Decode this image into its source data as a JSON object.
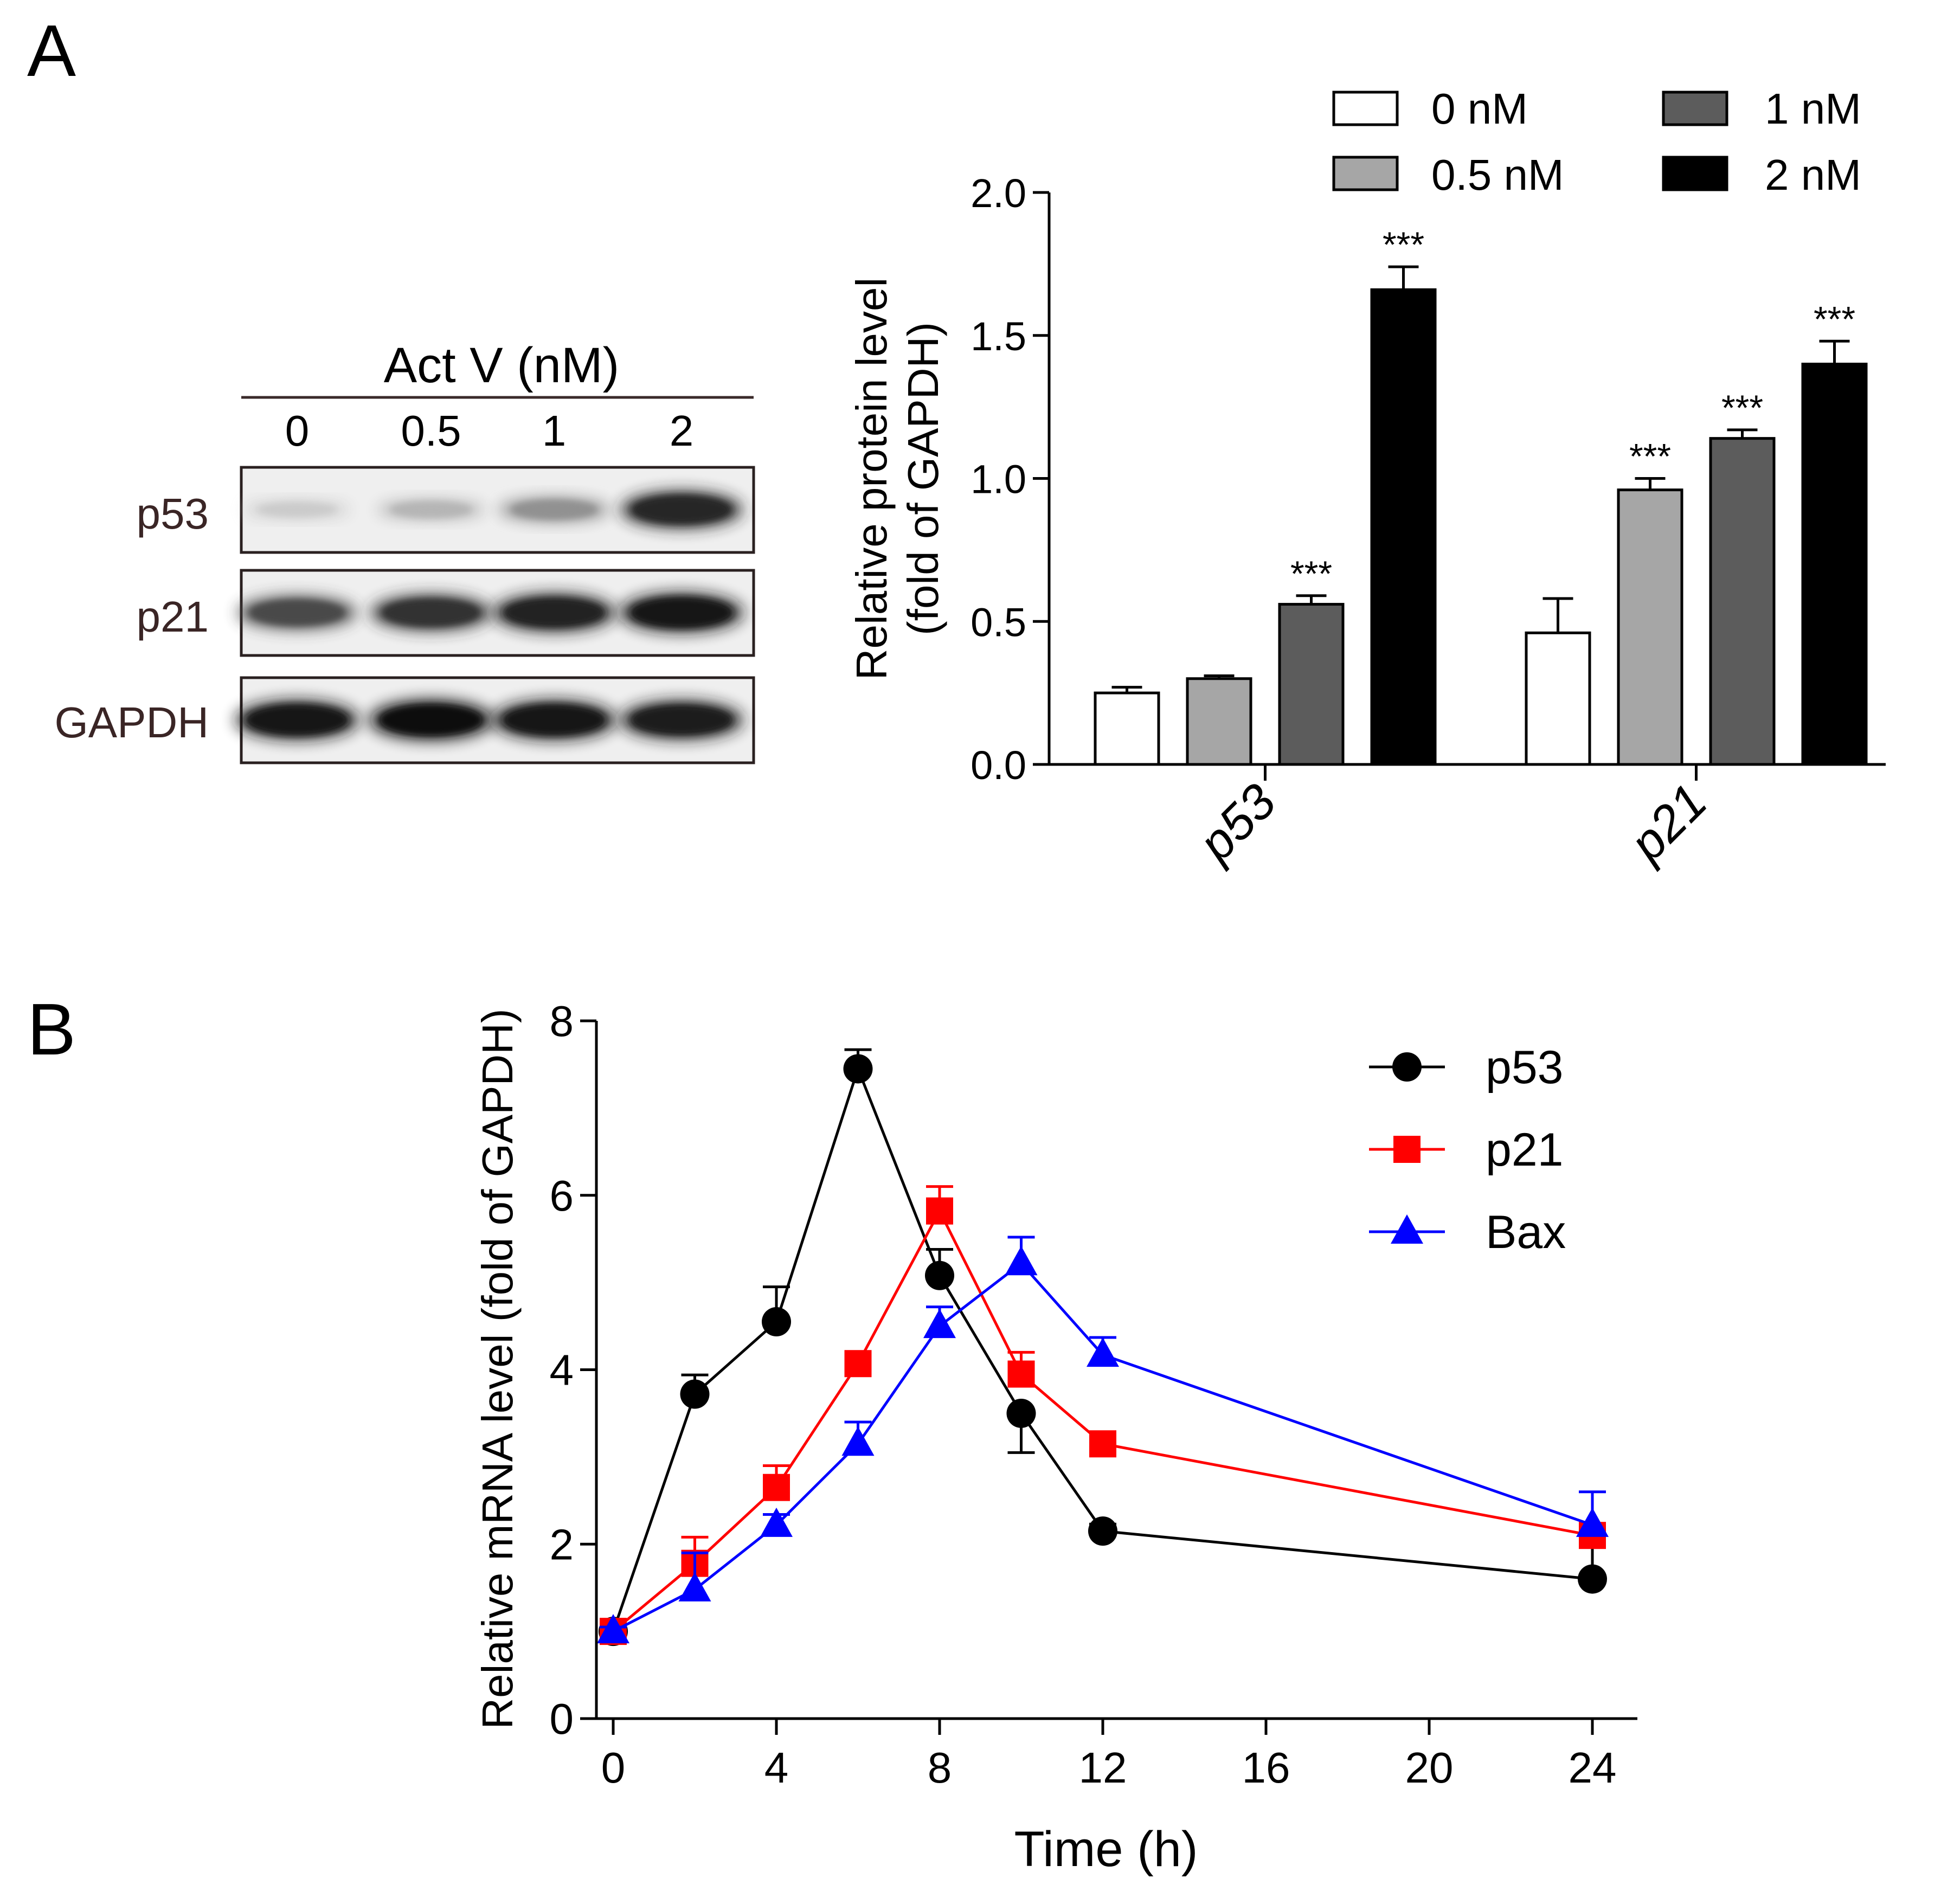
{
  "panels": {
    "a": "A",
    "b": "B"
  },
  "blot": {
    "title": "Act V (nM)",
    "lanes": [
      "0",
      "0.5",
      "1",
      "2"
    ],
    "rows": [
      {
        "label": "p53",
        "intensity": [
          0.12,
          0.22,
          0.38,
          0.85
        ]
      },
      {
        "label": "p21",
        "intensity": [
          0.7,
          0.8,
          0.88,
          0.92
        ]
      },
      {
        "label": "GAPDH",
        "intensity": [
          0.92,
          0.95,
          0.93,
          0.9
        ]
      }
    ]
  },
  "chart_data": [
    {
      "type": "bar",
      "title": "",
      "xlabel": "",
      "ylabel": [
        "Relative protein level",
        "(fold of GAPDH)"
      ],
      "ylim": [
        0,
        2.0
      ],
      "yticks": [
        "0.0",
        "0.5",
        "1.0",
        "1.5",
        "2.0"
      ],
      "categories": [
        "p53",
        "p21"
      ],
      "legend": [
        "0 nM",
        "0.5 nM",
        "1 nM",
        "2 nM"
      ],
      "colors": [
        "#ffffff",
        "#a6a6a6",
        "#5c5c5c",
        "#000000"
      ],
      "series": [
        {
          "name": "0 nM",
          "values": [
            0.25,
            0.46
          ],
          "errors": [
            0.02,
            0.12
          ],
          "sig": [
            "",
            ""
          ]
        },
        {
          "name": "0.5 nM",
          "values": [
            0.3,
            0.96
          ],
          "errors": [
            0.01,
            0.04
          ],
          "sig": [
            "",
            "***"
          ]
        },
        {
          "name": "1 nM",
          "values": [
            0.56,
            1.14
          ],
          "errors": [
            0.03,
            0.03
          ],
          "sig": [
            "***",
            "***"
          ]
        },
        {
          "name": "2 nM",
          "values": [
            1.66,
            1.4
          ],
          "errors": [
            0.08,
            0.08
          ],
          "sig": [
            "***",
            "***"
          ]
        }
      ]
    },
    {
      "type": "line",
      "title": "",
      "xlabel": "Time (h)",
      "ylabel": "Relative mRNA  level (fold of GAPDH)",
      "x": [
        0,
        2,
        4,
        6,
        8,
        10,
        12,
        24
      ],
      "xticks": [
        "0",
        "4",
        "8",
        "12",
        "16",
        "20",
        "24"
      ],
      "yticks": [
        "0",
        "2",
        "4",
        "6",
        "8"
      ],
      "ylim": [
        0,
        8
      ],
      "series": [
        {
          "name": "p53",
          "color": "#000000",
          "marker": "circle",
          "values": [
            1.0,
            3.72,
            4.55,
            7.45,
            5.08,
            3.5,
            2.15,
            1.6
          ],
          "errors": [
            0.05,
            0.22,
            0.4,
            0.22,
            0.3,
            0.45,
            0.08,
            0.38
          ]
        },
        {
          "name": "p21",
          "color": "#ff0000",
          "marker": "square",
          "values": [
            1.0,
            1.78,
            2.65,
            4.07,
            5.82,
            3.95,
            3.15,
            2.1
          ],
          "errors": [
            0.05,
            0.3,
            0.25,
            0.12,
            0.28,
            0.25,
            0.12,
            0.12
          ]
        },
        {
          "name": "Bax",
          "color": "#0000ff",
          "marker": "triangle",
          "values": [
            1.0,
            1.48,
            2.22,
            3.15,
            4.5,
            5.22,
            4.17,
            2.22
          ],
          "errors": [
            0.05,
            0.42,
            0.12,
            0.25,
            0.22,
            0.3,
            0.2,
            0.38
          ]
        }
      ]
    }
  ]
}
